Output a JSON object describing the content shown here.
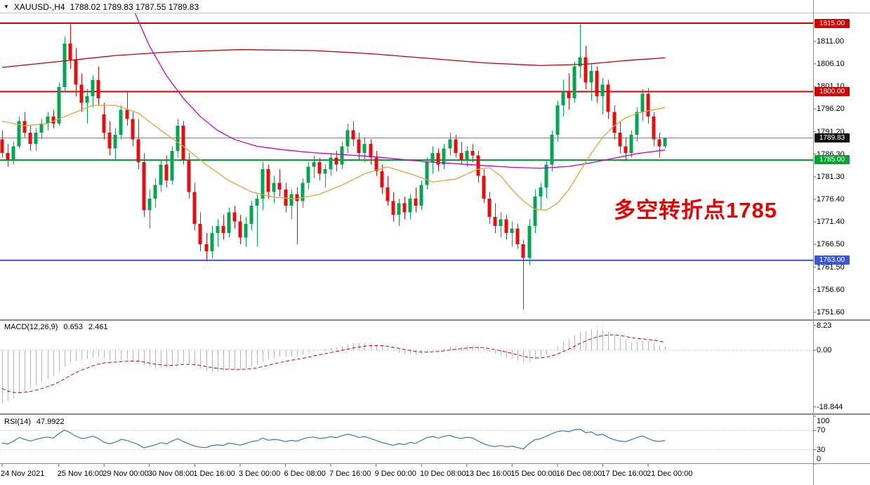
{
  "header": {
    "arrow": "▼",
    "symbol_period": "XAUUSD-,H4",
    "ohlc": "1788.02 1789.83 1787.55 1789.83"
  },
  "annotation": {
    "text": "多空转折点1785",
    "color": "#e60000"
  },
  "chart_data": {
    "type": "candlestick",
    "symbol": "XAUUSD-",
    "timeframe": "H4",
    "ohlc_current": {
      "open": "1788.02",
      "high": "1789.83",
      "low": "1787.55",
      "close": "1789.83"
    },
    "colors": {
      "bull": "#00a651",
      "bear": "#e80c0c"
    },
    "candles": [
      [
        1789.5,
        1791.5,
        1785.5,
        1786.5
      ],
      [
        1786.5,
        1788.5,
        1783.5,
        1785.0
      ],
      [
        1785.0,
        1789.0,
        1784.0,
        1788.0
      ],
      [
        1788.0,
        1794.5,
        1787.5,
        1793.5
      ],
      [
        1793.5,
        1795.5,
        1790.0,
        1791.0
      ],
      [
        1791.0,
        1792.5,
        1787.0,
        1788.5
      ],
      [
        1788.5,
        1792.0,
        1787.0,
        1791.0
      ],
      [
        1791.0,
        1794.0,
        1789.5,
        1793.0
      ],
      [
        1793.0,
        1795.5,
        1791.5,
        1794.5
      ],
      [
        1794.5,
        1796.0,
        1792.0,
        1793.0
      ],
      [
        1793.0,
        1802.0,
        1792.5,
        1801.0
      ],
      [
        1801.0,
        1812.0,
        1800.0,
        1810.5
      ],
      [
        1810.5,
        1815.2,
        1805.0,
        1807.0
      ],
      [
        1807.0,
        1809.5,
        1799.0,
        1801.5
      ],
      [
        1801.5,
        1804.0,
        1795.5,
        1797.5
      ],
      [
        1797.5,
        1800.5,
        1793.0,
        1799.0
      ],
      [
        1799.0,
        1803.5,
        1796.5,
        1802.5
      ],
      [
        1802.5,
        1805.5,
        1797.0,
        1798.5
      ],
      [
        1795.0,
        1797.5,
        1789.5,
        1791.0
      ],
      [
        1791.0,
        1793.5,
        1786.0,
        1787.5
      ],
      [
        1787.5,
        1792.0,
        1785.0,
        1790.5
      ],
      [
        1790.5,
        1797.0,
        1789.5,
        1796.0
      ],
      [
        1796.0,
        1800.0,
        1792.5,
        1794.0
      ],
      [
        1794.0,
        1795.5,
        1788.0,
        1789.5
      ],
      [
        1789.5,
        1794.0,
        1783.0,
        1784.5
      ],
      [
        1784.5,
        1786.5,
        1772.5,
        1774.0
      ],
      [
        1774.0,
        1778.5,
        1770.0,
        1776.5
      ],
      [
        1776.5,
        1781.0,
        1774.5,
        1779.5
      ],
      [
        1779.5,
        1785.0,
        1778.0,
        1784.0
      ],
      [
        1784.0,
        1786.0,
        1779.0,
        1780.5
      ],
      [
        1780.5,
        1788.0,
        1779.5,
        1787.0
      ],
      [
        1787.0,
        1794.0,
        1785.5,
        1792.5
      ],
      [
        1792.5,
        1793.5,
        1784.0,
        1785.0
      ],
      [
        1785.0,
        1786.5,
        1776.5,
        1778.0
      ],
      [
        1778.0,
        1780.0,
        1769.5,
        1771.0
      ],
      [
        1771.0,
        1773.5,
        1765.0,
        1766.5
      ],
      [
        1766.5,
        1769.0,
        1762.8,
        1765.0
      ],
      [
        1765.0,
        1770.5,
        1763.5,
        1769.0
      ],
      [
        1769.0,
        1772.0,
        1766.0,
        1770.5
      ],
      [
        1770.5,
        1773.0,
        1767.5,
        1769.0
      ],
      [
        1769.0,
        1774.5,
        1768.0,
        1773.5
      ],
      [
        1773.5,
        1775.0,
        1770.0,
        1771.5
      ],
      [
        1771.5,
        1773.0,
        1766.5,
        1768.0
      ],
      [
        1768.0,
        1772.5,
        1766.0,
        1771.0
      ],
      [
        1771.0,
        1776.0,
        1769.5,
        1775.0
      ],
      [
        1775.0,
        1777.5,
        1766.0,
        1776.5
      ],
      [
        1776.5,
        1784.5,
        1774.0,
        1783.0
      ],
      [
        1783.0,
        1784.0,
        1776.5,
        1778.0
      ],
      [
        1778.0,
        1781.5,
        1775.5,
        1780.0
      ],
      [
        1780.0,
        1783.0,
        1777.0,
        1778.5
      ],
      [
        1778.5,
        1780.0,
        1773.5,
        1775.0
      ],
      [
        1775.0,
        1778.5,
        1772.0,
        1777.5
      ],
      [
        1777.5,
        1779.0,
        1766.5,
        1776.0
      ],
      [
        1776.0,
        1781.0,
        1774.5,
        1780.0
      ],
      [
        1780.0,
        1784.5,
        1778.5,
        1783.5
      ],
      [
        1783.5,
        1786.0,
        1781.0,
        1784.5
      ],
      [
        1784.5,
        1785.5,
        1780.5,
        1782.0
      ],
      [
        1782.0,
        1784.0,
        1779.0,
        1783.0
      ],
      [
        1783.0,
        1786.5,
        1781.5,
        1785.5
      ],
      [
        1785.5,
        1787.0,
        1782.5,
        1784.0
      ],
      [
        1784.0,
        1789.0,
        1783.0,
        1788.0
      ],
      [
        1788.0,
        1793.0,
        1786.5,
        1791.5
      ],
      [
        1791.5,
        1793.5,
        1788.0,
        1789.5
      ],
      [
        1789.5,
        1791.0,
        1785.0,
        1786.5
      ],
      [
        1786.5,
        1790.0,
        1784.5,
        1788.5
      ],
      [
        1788.5,
        1789.5,
        1784.0,
        1785.5
      ],
      [
        1785.5,
        1787.0,
        1781.5,
        1782.5
      ],
      [
        1782.5,
        1784.0,
        1777.5,
        1779.0
      ],
      [
        1779.0,
        1781.5,
        1775.0,
        1776.0
      ],
      [
        1776.0,
        1778.0,
        1771.5,
        1773.0
      ],
      [
        1773.0,
        1776.5,
        1770.5,
        1775.5
      ],
      [
        1775.5,
        1777.0,
        1772.0,
        1773.5
      ],
      [
        1773.5,
        1777.5,
        1772.0,
        1776.5
      ],
      [
        1776.5,
        1779.0,
        1773.5,
        1775.0
      ],
      [
        1775.0,
        1780.5,
        1774.0,
        1779.5
      ],
      [
        1779.5,
        1785.5,
        1778.5,
        1784.5
      ],
      [
        1784.5,
        1788.0,
        1782.0,
        1786.5
      ],
      [
        1786.5,
        1787.5,
        1782.5,
        1784.0
      ],
      [
        1784.0,
        1788.5,
        1783.0,
        1787.5
      ],
      [
        1787.5,
        1791.0,
        1786.0,
        1789.5
      ],
      [
        1789.5,
        1790.5,
        1785.5,
        1786.5
      ],
      [
        1786.5,
        1789.0,
        1784.0,
        1785.0
      ],
      [
        1785.0,
        1788.0,
        1783.5,
        1787.0
      ],
      [
        1787.0,
        1788.5,
        1784.5,
        1786.0
      ],
      [
        1786.0,
        1787.0,
        1780.0,
        1781.5
      ],
      [
        1781.5,
        1783.0,
        1775.5,
        1776.5
      ],
      [
        1776.5,
        1778.0,
        1771.0,
        1772.5
      ],
      [
        1772.5,
        1775.5,
        1769.0,
        1770.5
      ],
      [
        1770.5,
        1773.5,
        1768.0,
        1772.0
      ],
      [
        1772.0,
        1773.0,
        1767.5,
        1769.0
      ],
      [
        1769.0,
        1771.5,
        1766.0,
        1770.0
      ],
      [
        1770.0,
        1771.0,
        1765.5,
        1766.5
      ],
      [
        1766.5,
        1767.5,
        1752.2,
        1763.5
      ],
      [
        1763.5,
        1772.0,
        1762.0,
        1770.5
      ],
      [
        1770.5,
        1778.5,
        1769.0,
        1777.0
      ],
      [
        1777.0,
        1780.0,
        1774.0,
        1779.0
      ],
      [
        1779.0,
        1785.0,
        1776.5,
        1784.0
      ],
      [
        1784.0,
        1791.5,
        1782.5,
        1790.5
      ],
      [
        1790.5,
        1798.0,
        1789.0,
        1797.0
      ],
      [
        1797.0,
        1802.5,
        1794.5,
        1800.0
      ],
      [
        1800.0,
        1804.0,
        1796.0,
        1798.5
      ],
      [
        1798.5,
        1806.5,
        1797.5,
        1805.5
      ],
      [
        1805.5,
        1814.8,
        1803.0,
        1807.5
      ],
      [
        1807.5,
        1810.0,
        1800.5,
        1802.0
      ],
      [
        1802.0,
        1806.0,
        1798.0,
        1804.5
      ],
      [
        1804.5,
        1805.5,
        1797.5,
        1799.0
      ],
      [
        1799.0,
        1803.0,
        1795.0,
        1801.5
      ],
      [
        1801.5,
        1802.5,
        1794.0,
        1795.5
      ],
      [
        1795.5,
        1797.0,
        1789.5,
        1791.0
      ],
      [
        1791.0,
        1793.5,
        1786.5,
        1788.0
      ],
      [
        1788.0,
        1790.0,
        1784.8,
        1786.5
      ],
      [
        1786.5,
        1791.5,
        1785.5,
        1790.5
      ],
      [
        1790.5,
        1796.5,
        1789.0,
        1795.5
      ],
      [
        1795.5,
        1800.5,
        1793.5,
        1799.5
      ],
      [
        1799.5,
        1800.8,
        1793.0,
        1794.5
      ],
      [
        1794.5,
        1795.5,
        1788.0,
        1789.5
      ],
      [
        1789.5,
        1791.0,
        1785.5,
        1788.0
      ],
      [
        1788.02,
        1789.83,
        1787.55,
        1789.83
      ]
    ],
    "hlines": [
      {
        "price": 1815.0,
        "label": "1815.00",
        "color": "#d40000",
        "width": 2
      },
      {
        "price": 1800.0,
        "label": "1800.00",
        "color": "#d40000",
        "width": 2
      },
      {
        "price": 1785.0,
        "label": "1785.00",
        "color": "#00a32e",
        "width": 2
      },
      {
        "price": 1763.0,
        "label": "1763.00",
        "color": "#3a56d4",
        "width": 2
      }
    ],
    "current_price": {
      "value": 1789.83,
      "label": "1789.83",
      "line_color": "#777777",
      "badge_color": "#111111"
    },
    "price_axis_labels": [
      "1811.00",
      "1806.10",
      "1801.10",
      "1796.20",
      "1791.20",
      "1786.30",
      "1781.30",
      "1776.40",
      "1771.40",
      "1766.50",
      "1761.50",
      "1756.60",
      "1751.60"
    ],
    "time_labels": [
      {
        "text": "24 Nov 2021",
        "bar": 0
      },
      {
        "text": "25 Nov 16:00",
        "bar": 10
      },
      {
        "text": "29 Nov 00:00",
        "bar": 18
      },
      {
        "text": "30 Nov 08:00",
        "bar": 26
      },
      {
        "text": "1 Dec 16:00",
        "bar": 34
      },
      {
        "text": "3 Dec 00:00",
        "bar": 42
      },
      {
        "text": "6 Dec 08:00",
        "bar": 50
      },
      {
        "text": "7 Dec 16:00",
        "bar": 58
      },
      {
        "text": "9 Dec 00:00",
        "bar": 66
      },
      {
        "text": "10 Dec 08:00",
        "bar": 74
      },
      {
        "text": "13 Dec 16:00",
        "bar": 82
      },
      {
        "text": "15 Dec 00:00",
        "bar": 90
      },
      {
        "text": "16 Dec 08:00",
        "bar": 98
      },
      {
        "text": "17 Dec 16:00",
        "bar": 106
      },
      {
        "text": "21 Dec 00:00",
        "bar": 114
      }
    ],
    "moving_averages": [
      {
        "name": "ma-slow-red",
        "color": "#c00000",
        "points": [
          [
            0,
            1805.3
          ],
          [
            10,
            1806.6
          ],
          [
            20,
            1807.9
          ],
          [
            30,
            1808.7
          ],
          [
            42,
            1809.2
          ],
          [
            55,
            1809.0
          ],
          [
            65,
            1808.3
          ],
          [
            75,
            1807.3
          ],
          [
            85,
            1806.3
          ],
          [
            95,
            1805.7
          ],
          [
            103,
            1806.0
          ],
          [
            110,
            1806.8
          ],
          [
            117,
            1807.4
          ]
        ]
      },
      {
        "name": "ma-mid-magenta",
        "color": "#c800c8",
        "points": [
          [
            23,
            1818.5
          ],
          [
            26,
            1810.0
          ],
          [
            29,
            1803.5
          ],
          [
            32,
            1798.5
          ],
          [
            35,
            1794.5
          ],
          [
            38,
            1791.5
          ],
          [
            41,
            1789.5
          ],
          [
            45,
            1788.0
          ],
          [
            50,
            1787.2
          ],
          [
            55,
            1786.6
          ],
          [
            60,
            1786.2
          ],
          [
            65,
            1785.8
          ],
          [
            70,
            1785.2
          ],
          [
            75,
            1784.6
          ],
          [
            80,
            1784.2
          ],
          [
            85,
            1783.8
          ],
          [
            90,
            1783.4
          ],
          [
            95,
            1783.2
          ],
          [
            100,
            1783.6
          ],
          [
            104,
            1784.4
          ],
          [
            108,
            1785.4
          ],
          [
            112,
            1786.4
          ],
          [
            117,
            1787.2
          ]
        ]
      },
      {
        "name": "ma-fast-orange",
        "color": "#e0a23c",
        "points": [
          [
            0,
            1793.5
          ],
          [
            4,
            1792.5
          ],
          [
            8,
            1793.0
          ],
          [
            12,
            1795.0
          ],
          [
            16,
            1797.0
          ],
          [
            20,
            1797.0
          ],
          [
            24,
            1795.3
          ],
          [
            28,
            1791.5
          ],
          [
            32,
            1788.0
          ],
          [
            36,
            1784.0
          ],
          [
            40,
            1780.5
          ],
          [
            44,
            1778.0
          ],
          [
            48,
            1776.8
          ],
          [
            52,
            1776.5
          ],
          [
            56,
            1777.5
          ],
          [
            60,
            1779.5
          ],
          [
            64,
            1782.0
          ],
          [
            68,
            1783.5
          ],
          [
            72,
            1782.0
          ],
          [
            76,
            1780.2
          ],
          [
            80,
            1780.8
          ],
          [
            84,
            1783.0
          ],
          [
            86,
            1783.3
          ],
          [
            88,
            1781.5
          ],
          [
            90,
            1778.5
          ],
          [
            92,
            1776.0
          ],
          [
            94,
            1774.2
          ],
          [
            96,
            1774.0
          ],
          [
            98,
            1775.5
          ],
          [
            100,
            1778.5
          ],
          [
            102,
            1782.5
          ],
          [
            104,
            1786.5
          ],
          [
            106,
            1790.0
          ],
          [
            108,
            1792.5
          ],
          [
            110,
            1794.2
          ],
          [
            112,
            1795.2
          ],
          [
            114,
            1795.8
          ],
          [
            117,
            1796.5
          ]
        ]
      }
    ],
    "macd": {
      "label": "MACD(12,26,9)",
      "main_value": "0.653",
      "signal_value": "2.461",
      "axis_labels": [
        "8.23",
        "0.00",
        "-18.844"
      ],
      "hist_color": "#b4b4b4",
      "signal_color": "#d40000",
      "seed": {
        "ema_fast": 1793.0,
        "ema_slow": 1811.5,
        "signal": -11.5
      }
    },
    "rsi": {
      "label": "RSI(14)",
      "value": "47.9922",
      "axis_labels": [
        "100",
        "70",
        "30",
        "0"
      ],
      "levels": [
        70,
        30
      ],
      "color": "#3678b8",
      "seed": {
        "avg_gain": 1.1,
        "avg_loss": 1.4
      }
    }
  }
}
